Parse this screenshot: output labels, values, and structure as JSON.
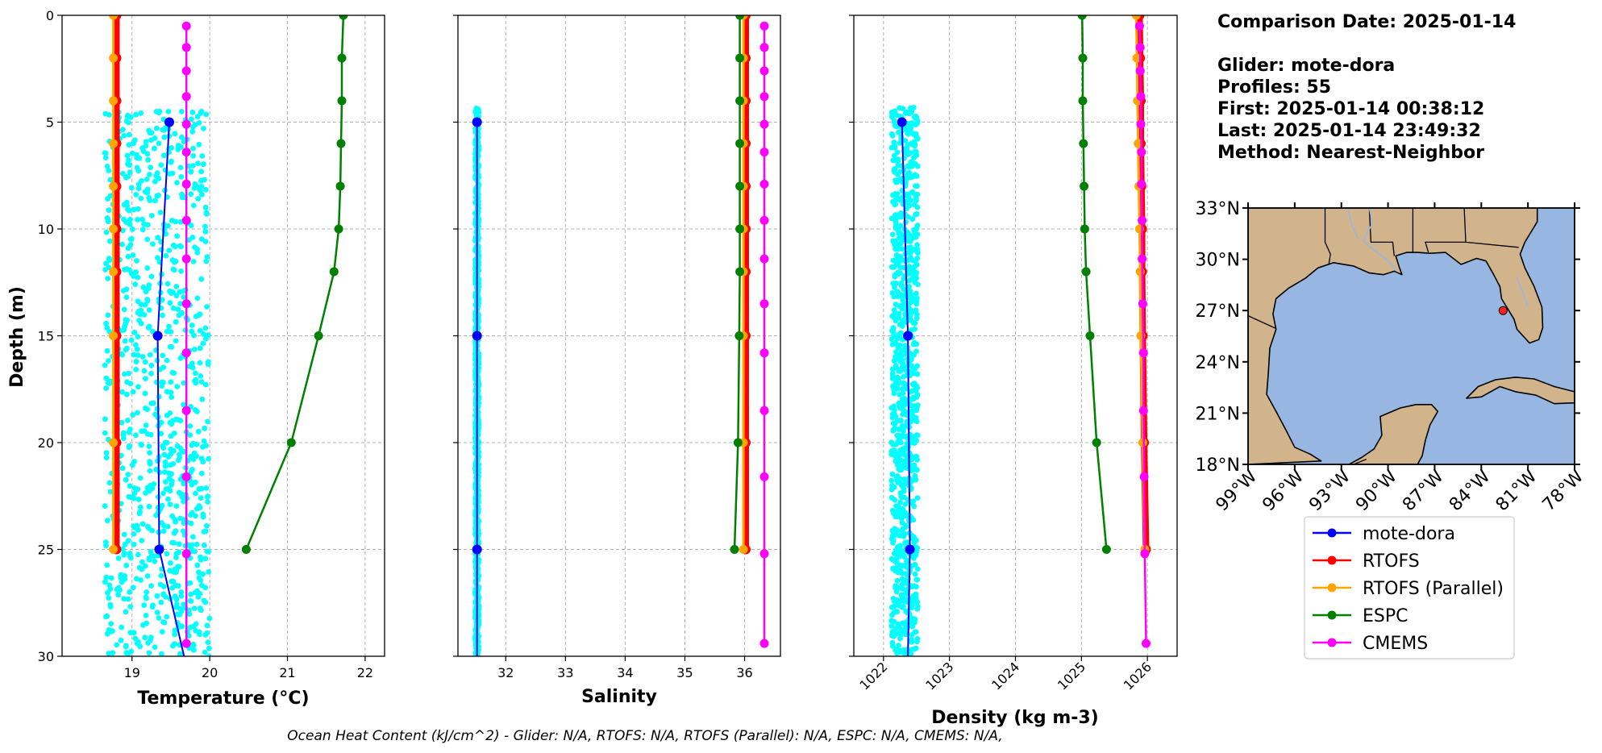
{
  "info": {
    "comparison_date": "Comparison Date: 2025-01-14",
    "glider": "Glider: mote-dora",
    "profiles": "Profiles: 55",
    "first": "First: 2025-01-14 00:38:12",
    "last": "Last: 2025-01-14 23:49:32",
    "method": "Method: Nearest-Neighbor"
  },
  "caption": "Ocean Heat Content (kJ/cm^2) - Glider: N/A,  RTOFS: N/A,  RTOFS (Parallel): N/A,  ESPC: N/A,  CMEMS: N/A,",
  "colors": {
    "glider": "#0000ff",
    "glider_scatter": "#00ffff",
    "rtofs": "#ff0000",
    "rtofs_parallel": "#ffa500",
    "espc": "#008000",
    "cmems": "#ff00ff",
    "ocean": "#97b6e1",
    "land": "#d2b48c"
  },
  "legend": [
    "mote-dora",
    "RTOFS",
    "RTOFS (Parallel)",
    "ESPC",
    "CMEMS"
  ],
  "map": {
    "lat_ticks": [
      "33°N",
      "30°N",
      "27°N",
      "24°N",
      "21°N",
      "18°N"
    ],
    "lon_ticks": [
      "99°W",
      "96°W",
      "93°W",
      "90°W",
      "87°W",
      "84°W",
      "81°W",
      "78°W"
    ],
    "glider_position": {
      "lon": -82.6,
      "lat": 27.0
    }
  },
  "chart_data": [
    {
      "type": "line",
      "xlabel": "Temperature (°C)",
      "ylabel": "Depth (m)",
      "xlim": [
        18.1,
        22.25
      ],
      "ylim": [
        30,
        0
      ],
      "x_ticks": [
        19,
        20,
        21,
        22
      ],
      "y_ticks": [
        0,
        5,
        10,
        15,
        20,
        25,
        30
      ],
      "grid": true,
      "scatter": {
        "name": "mote-dora",
        "x_range": [
          18.65,
          20.0
        ],
        "depth_range": [
          4.5,
          30
        ]
      },
      "series": [
        {
          "name": "mote-dora",
          "depth": [
            5,
            15,
            25,
            30
          ],
          "values": [
            19.48,
            19.33,
            19.35,
            19.67
          ]
        },
        {
          "name": "RTOFS",
          "depth": [
            0,
            2,
            4,
            6,
            8,
            10,
            12,
            15,
            20,
            25
          ],
          "values": [
            18.8,
            18.8,
            18.8,
            18.8,
            18.8,
            18.8,
            18.8,
            18.8,
            18.8,
            18.8
          ]
        },
        {
          "name": "RTOFS (Parallel)",
          "depth": [
            0,
            2,
            4,
            6,
            8,
            10,
            12,
            15,
            20,
            25
          ],
          "values": [
            18.76,
            18.76,
            18.76,
            18.76,
            18.76,
            18.76,
            18.76,
            18.76,
            18.76,
            18.76
          ]
        },
        {
          "name": "ESPC",
          "depth": [
            0,
            2,
            4,
            6,
            8,
            10,
            12,
            15,
            20,
            25
          ],
          "values": [
            21.72,
            21.7,
            21.7,
            21.69,
            21.68,
            21.66,
            21.6,
            21.4,
            21.05,
            20.47
          ]
        },
        {
          "name": "CMEMS",
          "depth": [
            0.5,
            1.5,
            2.6,
            3.8,
            5.1,
            6.4,
            7.9,
            9.6,
            11.4,
            13.5,
            15.8,
            18.5,
            21.6,
            25.2,
            29.4
          ],
          "values": [
            19.7,
            19.7,
            19.7,
            19.7,
            19.7,
            19.7,
            19.7,
            19.7,
            19.7,
            19.7,
            19.7,
            19.7,
            19.7,
            19.7,
            19.7
          ]
        }
      ]
    },
    {
      "type": "line",
      "xlabel": "Salinity",
      "xlim": [
        31.2,
        36.6
      ],
      "ylim": [
        30,
        0
      ],
      "x_ticks": [
        32,
        33,
        34,
        35,
        36
      ],
      "grid": true,
      "scatter": {
        "name": "mote-dora",
        "x_range": [
          31.49,
          31.55
        ],
        "depth_range": [
          4.3,
          30
        ]
      },
      "series": [
        {
          "name": "mote-dora",
          "depth": [
            5,
            15,
            25,
            30
          ],
          "values": [
            31.52,
            31.52,
            31.52,
            31.52
          ]
        },
        {
          "name": "RTOFS",
          "depth": [
            0,
            2,
            4,
            6,
            8,
            10,
            12,
            15,
            20,
            25
          ],
          "values": [
            36.02,
            36.02,
            36.02,
            36.02,
            36.02,
            36.02,
            36.02,
            36.02,
            36.02,
            36.02
          ]
        },
        {
          "name": "RTOFS (Parallel)",
          "depth": [
            0,
            2,
            4,
            6,
            8,
            10,
            12,
            15,
            20,
            25
          ],
          "values": [
            35.98,
            35.98,
            35.98,
            35.98,
            35.98,
            35.98,
            35.98,
            35.98,
            35.98,
            35.98
          ]
        },
        {
          "name": "ESPC",
          "depth": [
            0,
            2,
            4,
            6,
            8,
            10,
            12,
            15,
            20,
            25
          ],
          "values": [
            35.92,
            35.92,
            35.92,
            35.92,
            35.92,
            35.92,
            35.92,
            35.91,
            35.89,
            35.83
          ]
        },
        {
          "name": "CMEMS",
          "depth": [
            0.5,
            1.5,
            2.6,
            3.8,
            5.1,
            6.4,
            7.9,
            9.6,
            11.4,
            13.5,
            15.8,
            18.5,
            21.6,
            25.2,
            29.4
          ],
          "values": [
            36.33,
            36.33,
            36.33,
            36.33,
            36.33,
            36.33,
            36.33,
            36.33,
            36.33,
            36.33,
            36.33,
            36.33,
            36.33,
            36.33,
            36.33
          ]
        }
      ]
    },
    {
      "type": "line",
      "xlabel": "Density (kg m-3)",
      "xlim": [
        1021.55,
        1026.45
      ],
      "ylim": [
        30,
        0
      ],
      "x_ticks": [
        1022,
        1023,
        1024,
        1025,
        1026
      ],
      "grid": true,
      "scatter": {
        "name": "mote-dora",
        "x_range": [
          1022.12,
          1022.52
        ],
        "depth_range": [
          4.3,
          30
        ]
      },
      "series": [
        {
          "name": "mote-dora",
          "depth": [
            5,
            15,
            25,
            30
          ],
          "values": [
            1022.28,
            1022.37,
            1022.4,
            1022.37
          ]
        },
        {
          "name": "RTOFS",
          "depth": [
            0,
            2,
            4,
            6,
            8,
            10,
            12,
            15,
            20,
            25
          ],
          "values": [
            1025.88,
            1025.89,
            1025.9,
            1025.9,
            1025.91,
            1025.92,
            1025.92,
            1025.93,
            1025.95,
            1025.98
          ]
        },
        {
          "name": "RTOFS (Parallel)",
          "depth": [
            0,
            2,
            4,
            6,
            8,
            10,
            12,
            15,
            20,
            25
          ],
          "values": [
            1025.83,
            1025.84,
            1025.85,
            1025.86,
            1025.87,
            1025.88,
            1025.89,
            1025.9,
            1025.93,
            1025.96
          ]
        },
        {
          "name": "ESPC",
          "depth": [
            0,
            2,
            4,
            6,
            8,
            10,
            12,
            15,
            20,
            25
          ],
          "values": [
            1025.01,
            1025.02,
            1025.02,
            1025.03,
            1025.04,
            1025.05,
            1025.07,
            1025.13,
            1025.23,
            1025.38
          ]
        },
        {
          "name": "CMEMS",
          "depth": [
            0.5,
            1.5,
            2.6,
            3.8,
            5.1,
            6.4,
            7.9,
            9.6,
            11.4,
            13.5,
            15.8,
            18.5,
            21.6,
            25.2,
            29.4
          ],
          "values": [
            1025.88,
            1025.89,
            1025.89,
            1025.9,
            1025.9,
            1025.91,
            1025.91,
            1025.92,
            1025.92,
            1025.93,
            1025.94,
            1025.94,
            1025.95,
            1025.96,
            1025.98
          ]
        }
      ]
    }
  ]
}
